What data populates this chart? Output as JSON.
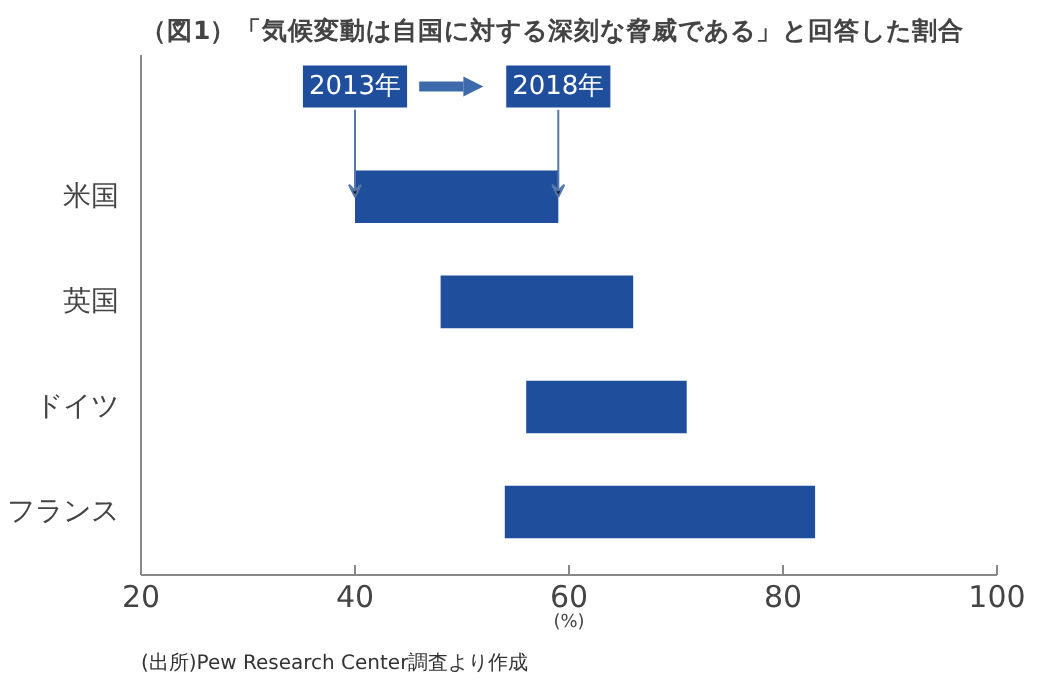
{
  "chart_data": {
    "type": "bar",
    "orientation": "horizontal",
    "title": "（図1）「気候変動は自国に対する深刻な脅威である」と回答した割合",
    "categories": [
      "米国",
      "英国",
      "ドイツ",
      "フランス"
    ],
    "base": [
      40,
      48,
      56,
      54
    ],
    "values": [
      19,
      18,
      15,
      29
    ],
    "color": "#1f4f9c",
    "xlim": [
      20,
      100
    ],
    "xticks": [
      20,
      40,
      60,
      80,
      100
    ],
    "xlabel": "(%)",
    "grid": false,
    "annotations": [
      {
        "text": "2013年",
        "x": 40,
        "y": "米国"
      },
      {
        "text": "2018年",
        "x": 59,
        "y": "米国"
      },
      "(出所)Pew Research Center調査より作成"
    ]
  }
}
